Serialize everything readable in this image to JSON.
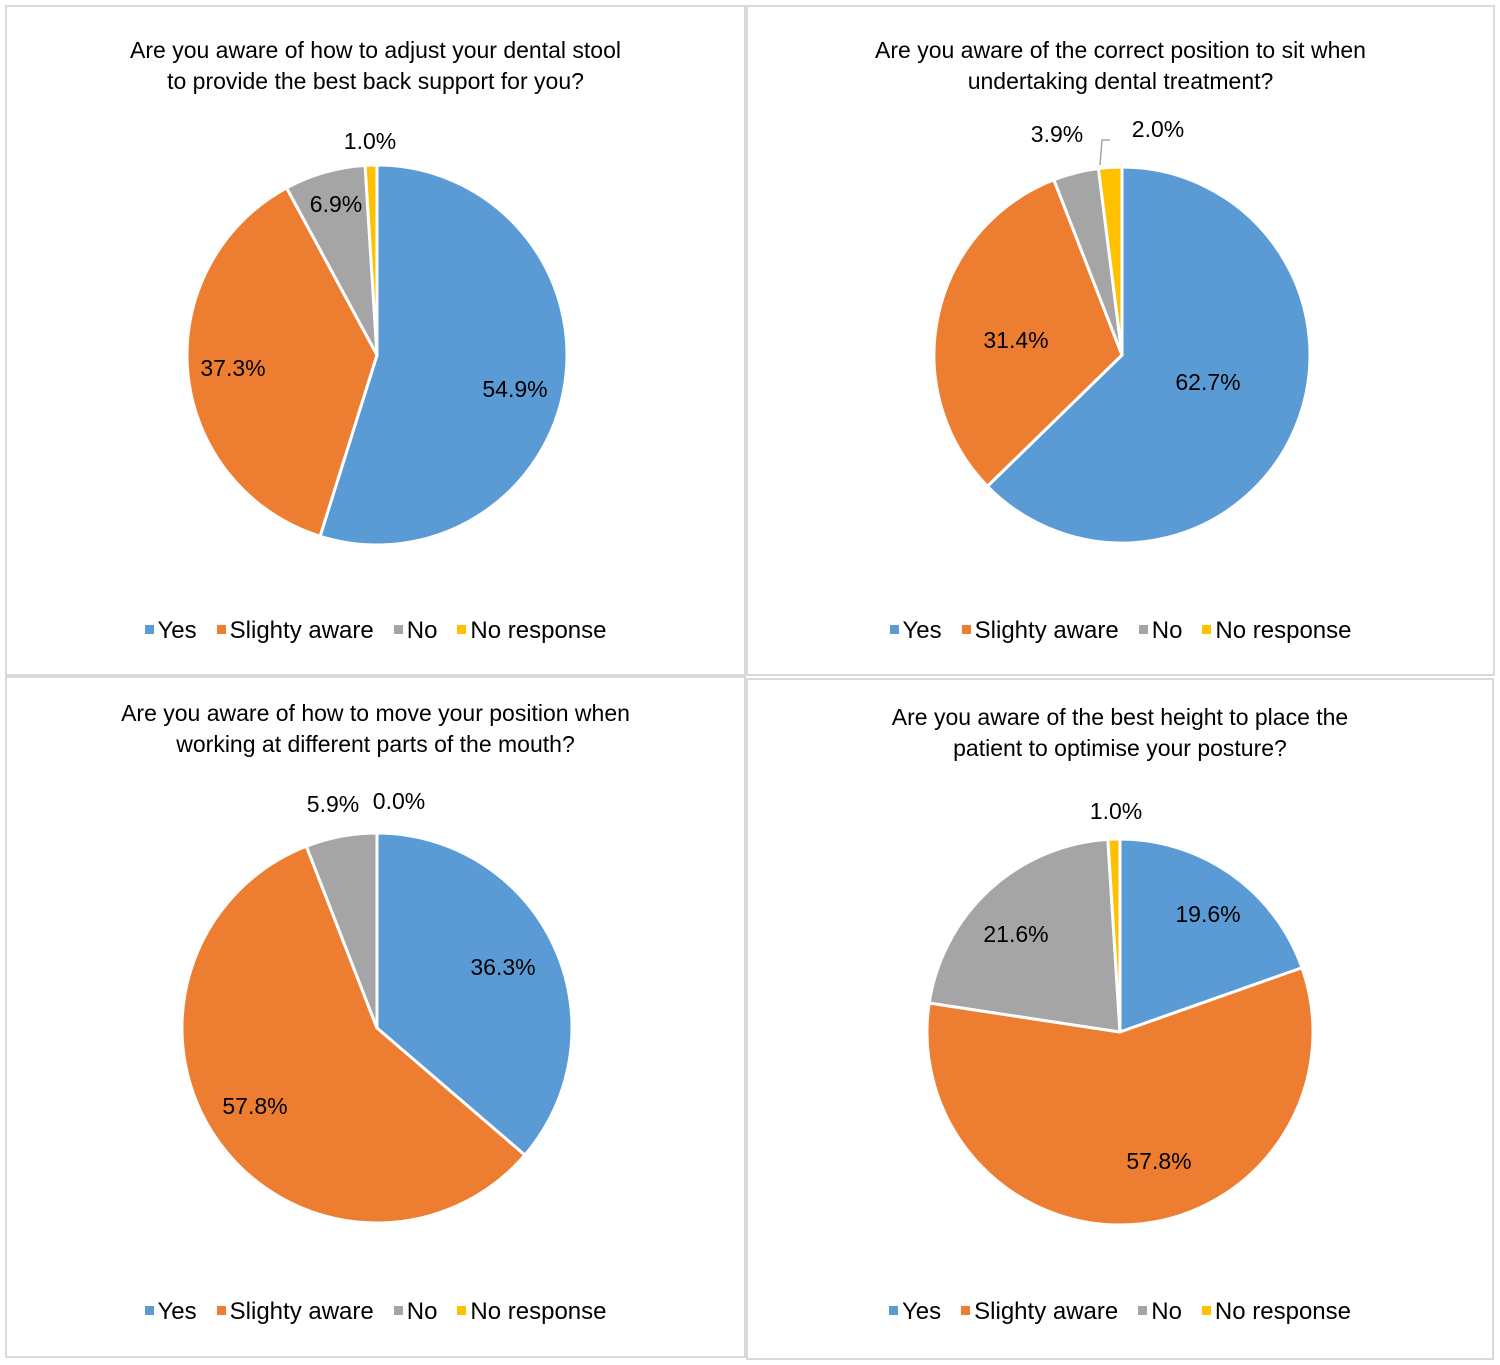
{
  "colors": {
    "Yes": "#5b9bd5",
    "Slighty aware": "#ed7d31",
    "No": "#a5a5a5",
    "No response": "#ffc000"
  },
  "legend": [
    "Yes",
    "Slighty aware",
    "No",
    "No response"
  ],
  "chart_data": [
    {
      "type": "pie",
      "title": "Are you aware of how to adjust your dental stool to provide the best back support for you?",
      "title_lines": [
        "Are you aware of how to adjust your dental stool",
        "to provide the best back support for you?"
      ],
      "categories": [
        "Yes",
        "Slighty aware",
        "No",
        "No response"
      ],
      "values": [
        54.9,
        37.3,
        6.9,
        1.0
      ],
      "labels": [
        "54.9%",
        "37.3%",
        "6.9%",
        "1.0%"
      ],
      "legend_position": "bottom"
    },
    {
      "type": "pie",
      "title": "Are you aware of the correct position to sit when undertaking dental treatment?",
      "title_lines": [
        "Are you aware of the correct position to sit when",
        "undertaking dental treatment?"
      ],
      "categories": [
        "Yes",
        "Slighty aware",
        "No",
        "No response"
      ],
      "values": [
        62.7,
        31.4,
        3.9,
        2.0
      ],
      "labels": [
        "62.7%",
        "31.4%",
        "3.9%",
        "2.0%"
      ],
      "legend_position": "bottom"
    },
    {
      "type": "pie",
      "title": "Are you aware of how to move your position when working at different parts of the mouth?",
      "title_lines": [
        "Are you aware of how to move your position when",
        "working at different parts of the mouth?"
      ],
      "categories": [
        "Yes",
        "Slighty aware",
        "No",
        "No response"
      ],
      "values": [
        36.3,
        57.8,
        5.9,
        0.0
      ],
      "labels": [
        "36.3%",
        "57.8%",
        "5.9%",
        "0.0%"
      ],
      "legend_position": "bottom"
    },
    {
      "type": "pie",
      "title": "Are you aware of the best height to place the patient to optimise your posture?",
      "title_lines": [
        "Are you aware of the best height to place the",
        "patient to optimise your posture?"
      ],
      "categories": [
        "Yes",
        "Slighty aware",
        "No",
        "No response"
      ],
      "values": [
        19.6,
        57.8,
        21.6,
        1.0
      ],
      "labels": [
        "19.6%",
        "57.8%",
        "21.6%",
        "1.0%"
      ],
      "legend_position": "bottom"
    }
  ]
}
